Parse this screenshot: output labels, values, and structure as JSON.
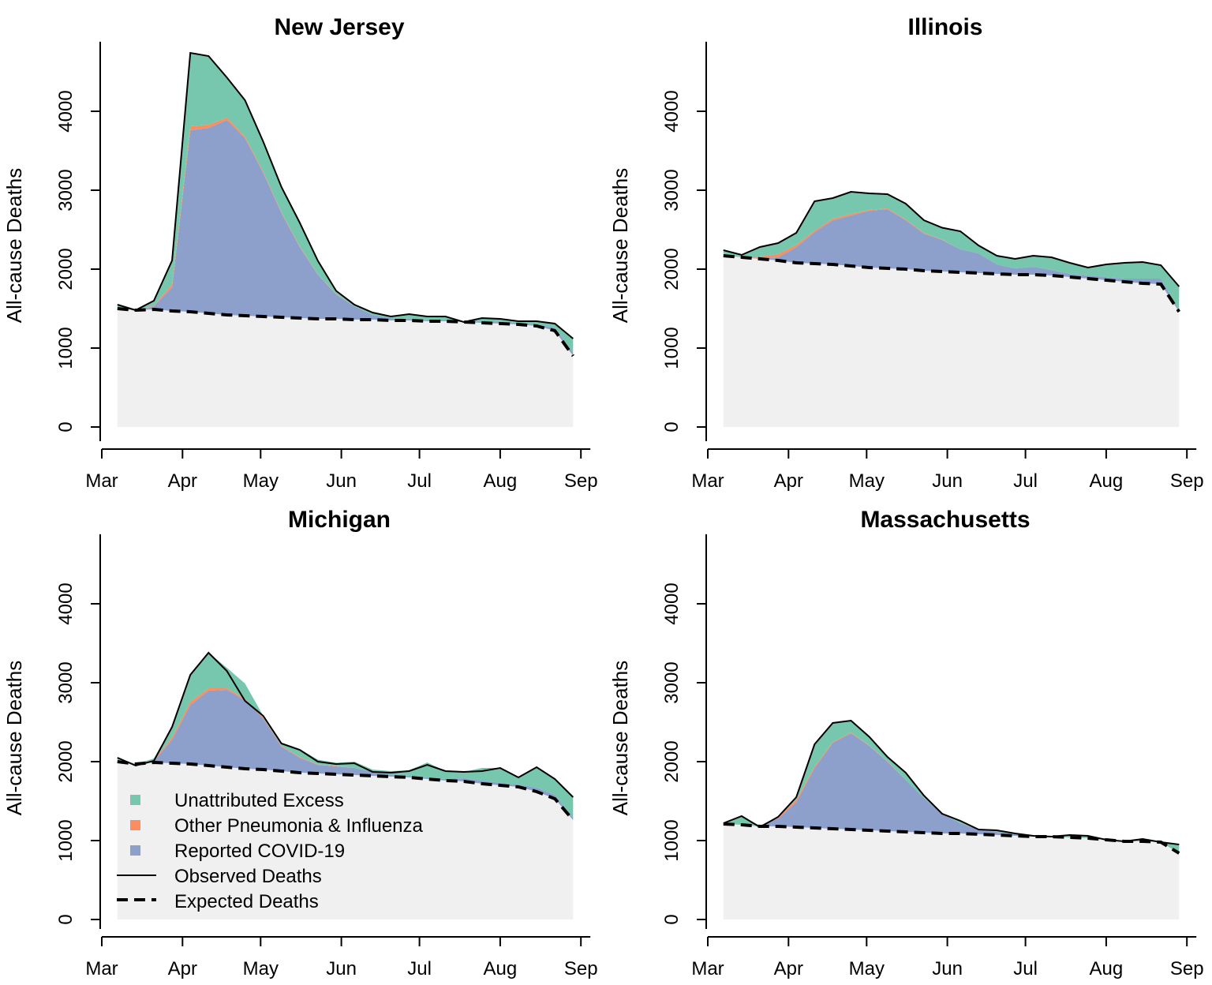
{
  "legend": {
    "items": [
      {
        "label": "Unattributed Excess",
        "kind": "box",
        "color": "#76c7ad"
      },
      {
        "label": "Other Pneumonia & Influenza",
        "kind": "box",
        "color": "#fb8d62"
      },
      {
        "label": "Reported COVID-19",
        "kind": "box",
        "color": "#8da0cb"
      },
      {
        "label": "Observed Deaths",
        "kind": "solid-line",
        "color": "#000000"
      },
      {
        "label": "Expected Deaths",
        "kind": "dashed-line",
        "color": "#000000"
      }
    ]
  },
  "colors": {
    "baseline_fill": "#f0f0f0",
    "unattributed": "#76c7ad",
    "pneumonia": "#fb8d62",
    "covid": "#8da0cb"
  },
  "chart_data": [
    {
      "type": "area",
      "title": "New Jersey",
      "ylabel": "All-cause Deaths",
      "xlabel": "",
      "ylim": [
        0,
        4800
      ],
      "yticks": [
        0,
        1000,
        2000,
        3000,
        4000
      ],
      "xticks": [
        {
          "label": "Mar",
          "date": "2020-03-01"
        },
        {
          "label": "Apr",
          "date": "2020-04-01"
        },
        {
          "label": "May",
          "date": "2020-05-01"
        },
        {
          "label": "Jun",
          "date": "2020-06-01"
        },
        {
          "label": "Jul",
          "date": "2020-07-01"
        },
        {
          "label": "Aug",
          "date": "2020-08-01"
        },
        {
          "label": "Sep",
          "date": "2020-09-01"
        }
      ],
      "x": [
        "2020-03-07",
        "2020-03-14",
        "2020-03-21",
        "2020-03-28",
        "2020-04-04",
        "2020-04-11",
        "2020-04-18",
        "2020-04-25",
        "2020-05-02",
        "2020-05-09",
        "2020-05-16",
        "2020-05-23",
        "2020-05-30",
        "2020-06-06",
        "2020-06-13",
        "2020-06-20",
        "2020-06-27",
        "2020-07-04",
        "2020-07-11",
        "2020-07-18",
        "2020-07-25",
        "2020-08-01",
        "2020-08-08",
        "2020-08-15",
        "2020-08-22",
        "2020-08-29"
      ],
      "series": [
        {
          "name": "Expected Deaths",
          "values": [
            1500,
            1480,
            1490,
            1470,
            1460,
            1440,
            1420,
            1410,
            1400,
            1390,
            1380,
            1370,
            1370,
            1360,
            1360,
            1350,
            1350,
            1340,
            1340,
            1330,
            1320,
            1310,
            1300,
            1280,
            1220,
            900
          ]
        },
        {
          "name": "Reported COVID-19",
          "values": [
            0,
            0,
            40,
            300,
            2300,
            2350,
            2470,
            2250,
            1820,
            1320,
            900,
            560,
            310,
            170,
            60,
            30,
            20,
            10,
            10,
            0,
            10,
            20,
            20,
            20,
            40,
            40
          ]
        },
        {
          "name": "Other Pneumonia & Influenza",
          "values": [
            0,
            0,
            10,
            40,
            50,
            40,
            30,
            20,
            15,
            10,
            10,
            5,
            5,
            0,
            0,
            0,
            0,
            0,
            0,
            0,
            0,
            0,
            0,
            0,
            0,
            0
          ]
        },
        {
          "name": "Unattributed Excess",
          "values": [
            50,
            0,
            60,
            300,
            930,
            870,
            510,
            460,
            380,
            320,
            300,
            170,
            40,
            20,
            30,
            20,
            60,
            50,
            50,
            0,
            50,
            40,
            20,
            40,
            50,
            180
          ]
        }
      ],
      "observed": [
        1550,
        1480,
        1600,
        2110,
        4740,
        4700,
        4430,
        4140,
        3615,
        3040,
        2590,
        2105,
        1725,
        1550,
        1450,
        1400,
        1430,
        1400,
        1400,
        1330,
        1380,
        1370,
        1340,
        1340,
        1310,
        1120
      ]
    },
    {
      "type": "area",
      "title": "Illinois",
      "ylabel": "All-cause Deaths",
      "xlabel": "",
      "ylim": [
        0,
        4800
      ],
      "yticks": [
        0,
        1000,
        2000,
        3000,
        4000
      ],
      "xticks": [
        {
          "label": "Mar",
          "date": "2020-03-01"
        },
        {
          "label": "Apr",
          "date": "2020-04-01"
        },
        {
          "label": "May",
          "date": "2020-05-01"
        },
        {
          "label": "Jun",
          "date": "2020-06-01"
        },
        {
          "label": "Jul",
          "date": "2020-07-01"
        },
        {
          "label": "Aug",
          "date": "2020-08-01"
        },
        {
          "label": "Sep",
          "date": "2020-09-01"
        }
      ],
      "x": [
        "2020-03-07",
        "2020-03-14",
        "2020-03-21",
        "2020-03-28",
        "2020-04-04",
        "2020-04-11",
        "2020-04-18",
        "2020-04-25",
        "2020-05-02",
        "2020-05-09",
        "2020-05-16",
        "2020-05-23",
        "2020-05-30",
        "2020-06-06",
        "2020-06-13",
        "2020-06-20",
        "2020-06-27",
        "2020-07-04",
        "2020-07-11",
        "2020-07-18",
        "2020-07-25",
        "2020-08-01",
        "2020-08-08",
        "2020-08-15",
        "2020-08-22",
        "2020-08-29"
      ],
      "series": [
        {
          "name": "Expected Deaths",
          "values": [
            2170,
            2150,
            2130,
            2110,
            2080,
            2070,
            2060,
            2040,
            2020,
            2010,
            2000,
            1980,
            1970,
            1960,
            1950,
            1940,
            1930,
            1930,
            1920,
            1900,
            1880,
            1860,
            1840,
            1820,
            1810,
            1460
          ]
        },
        {
          "name": "Reported COVID-19",
          "values": [
            0,
            0,
            10,
            40,
            200,
            400,
            560,
            640,
            720,
            750,
            620,
            470,
            400,
            290,
            250,
            120,
            80,
            100,
            70,
            40,
            40,
            40,
            40,
            60,
            70,
            20
          ]
        },
        {
          "name": "Other Pneumonia & Influenza",
          "values": [
            0,
            10,
            20,
            40,
            30,
            20,
            20,
            20,
            10,
            10,
            10,
            10,
            5,
            0,
            0,
            0,
            0,
            0,
            0,
            0,
            0,
            0,
            0,
            0,
            0,
            0
          ]
        },
        {
          "name": "Unattributed Excess",
          "values": [
            70,
            20,
            120,
            140,
            150,
            370,
            260,
            280,
            210,
            180,
            200,
            160,
            150,
            230,
            100,
            110,
            120,
            140,
            160,
            140,
            100,
            160,
            200,
            210,
            170,
            300
          ]
        }
      ],
      "observed": [
        2240,
        2180,
        2280,
        2330,
        2460,
        2860,
        2900,
        2980,
        2960,
        2950,
        2830,
        2620,
        2525,
        2480,
        2300,
        2170,
        2130,
        2170,
        2150,
        2080,
        2020,
        2060,
        2080,
        2090,
        2050,
        1780
      ]
    },
    {
      "type": "area",
      "title": "Michigan",
      "ylabel": "All-cause Deaths",
      "xlabel": "",
      "ylim": [
        0,
        4800
      ],
      "yticks": [
        0,
        1000,
        2000,
        3000,
        4000
      ],
      "xticks": [
        {
          "label": "Mar",
          "date": "2020-03-01"
        },
        {
          "label": "Apr",
          "date": "2020-04-01"
        },
        {
          "label": "May",
          "date": "2020-05-01"
        },
        {
          "label": "Jun",
          "date": "2020-06-01"
        },
        {
          "label": "Jul",
          "date": "2020-07-01"
        },
        {
          "label": "Aug",
          "date": "2020-08-01"
        },
        {
          "label": "Sep",
          "date": "2020-09-01"
        }
      ],
      "x": [
        "2020-03-07",
        "2020-03-14",
        "2020-03-21",
        "2020-03-28",
        "2020-04-04",
        "2020-04-11",
        "2020-04-18",
        "2020-04-25",
        "2020-05-02",
        "2020-05-09",
        "2020-05-16",
        "2020-05-23",
        "2020-05-30",
        "2020-06-06",
        "2020-06-13",
        "2020-06-20",
        "2020-06-27",
        "2020-07-04",
        "2020-07-11",
        "2020-07-18",
        "2020-07-25",
        "2020-08-01",
        "2020-08-08",
        "2020-08-15",
        "2020-08-22",
        "2020-08-29"
      ],
      "series": [
        {
          "name": "Expected Deaths",
          "values": [
            2000,
            1970,
            1990,
            1980,
            1970,
            1950,
            1930,
            1910,
            1900,
            1880,
            1860,
            1850,
            1840,
            1830,
            1820,
            1810,
            1800,
            1780,
            1760,
            1750,
            1720,
            1700,
            1680,
            1620,
            1530,
            1260
          ]
        },
        {
          "name": "Reported COVID-19",
          "values": [
            0,
            0,
            20,
            300,
            750,
            950,
            980,
            870,
            650,
            310,
            190,
            110,
            100,
            90,
            50,
            30,
            20,
            20,
            20,
            40,
            40,
            30,
            30,
            50,
            50,
            30
          ]
        },
        {
          "name": "Other Pneumonia & Influenza",
          "values": [
            0,
            0,
            10,
            30,
            40,
            30,
            20,
            20,
            10,
            10,
            10,
            5,
            5,
            0,
            0,
            0,
            0,
            0,
            0,
            0,
            0,
            0,
            0,
            0,
            0,
            0
          ]
        },
        {
          "name": "Unattributed Excess",
          "values": [
            50,
            0,
            20,
            130,
            350,
            450,
            260,
            190,
            20,
            40,
            100,
            60,
            40,
            80,
            30,
            40,
            70,
            190,
            100,
            80,
            160,
            190,
            90,
            260,
            200,
            260
          ]
        }
      ],
      "observed": [
        2050,
        1950,
        2010,
        2440,
        3100,
        3380,
        3150,
        2770,
        2580,
        2230,
        2150,
        2000,
        1970,
        1980,
        1870,
        1860,
        1880,
        1960,
        1880,
        1870,
        1880,
        1920,
        1800,
        1930,
        1780,
        1550
      ]
    },
    {
      "type": "area",
      "title": "Massachusetts",
      "ylabel": "All-cause Deaths",
      "xlabel": "",
      "ylim": [
        0,
        4800
      ],
      "yticks": [
        0,
        1000,
        2000,
        3000,
        4000
      ],
      "xticks": [
        {
          "label": "Mar",
          "date": "2020-03-01"
        },
        {
          "label": "Apr",
          "date": "2020-04-01"
        },
        {
          "label": "May",
          "date": "2020-05-01"
        },
        {
          "label": "Jun",
          "date": "2020-06-01"
        },
        {
          "label": "Jul",
          "date": "2020-07-01"
        },
        {
          "label": "Aug",
          "date": "2020-08-01"
        },
        {
          "label": "Sep",
          "date": "2020-09-01"
        }
      ],
      "x": [
        "2020-03-07",
        "2020-03-14",
        "2020-03-21",
        "2020-03-28",
        "2020-04-04",
        "2020-04-11",
        "2020-04-18",
        "2020-04-25",
        "2020-05-02",
        "2020-05-09",
        "2020-05-16",
        "2020-05-23",
        "2020-05-30",
        "2020-06-06",
        "2020-06-13",
        "2020-06-20",
        "2020-06-27",
        "2020-07-04",
        "2020-07-11",
        "2020-07-18",
        "2020-07-25",
        "2020-08-01",
        "2020-08-08",
        "2020-08-15",
        "2020-08-22",
        "2020-08-29"
      ],
      "series": [
        {
          "name": "Expected Deaths",
          "values": [
            1210,
            1200,
            1180,
            1180,
            1170,
            1160,
            1150,
            1140,
            1130,
            1120,
            1110,
            1100,
            1090,
            1090,
            1080,
            1070,
            1060,
            1050,
            1050,
            1040,
            1030,
            1010,
            990,
            990,
            980,
            840
          ]
        },
        {
          "name": "Reported COVID-19",
          "values": [
            0,
            0,
            10,
            100,
            320,
            760,
            1090,
            1220,
            1070,
            880,
            660,
            440,
            250,
            130,
            60,
            40,
            20,
            10,
            0,
            0,
            0,
            0,
            0,
            0,
            0,
            0
          ]
        },
        {
          "name": "Other Pneumonia & Influenza",
          "values": [
            0,
            0,
            0,
            20,
            30,
            20,
            10,
            10,
            5,
            5,
            0,
            0,
            0,
            0,
            0,
            0,
            0,
            0,
            0,
            0,
            0,
            0,
            0,
            0,
            0,
            0
          ]
        },
        {
          "name": "Unattributed Excess",
          "values": [
            10,
            110,
            0,
            0,
            30,
            280,
            240,
            150,
            110,
            55,
            90,
            30,
            0,
            30,
            0,
            20,
            10,
            0,
            0,
            30,
            30,
            0,
            0,
            30,
            0,
            110
          ]
        }
      ],
      "observed": [
        1220,
        1310,
        1170,
        1300,
        1550,
        2220,
        2490,
        2520,
        2315,
        2060,
        1860,
        1570,
        1340,
        1250,
        1140,
        1130,
        1090,
        1060,
        1050,
        1070,
        1060,
        1010,
        990,
        1020,
        980,
        950
      ]
    }
  ]
}
